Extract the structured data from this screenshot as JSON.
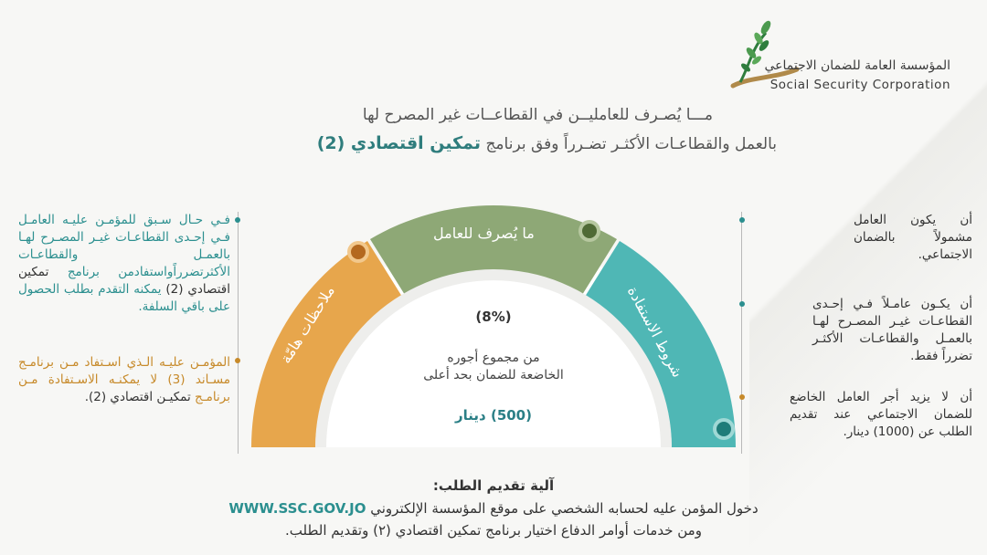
{
  "logo": {
    "name_ar": "المؤسسة العامة للضمان الاجتماعي",
    "name_en": "Social Security Corporation"
  },
  "header": {
    "line1": "مـــا يُصـرف للعامليــن في القطاعــات غير المصرح لها",
    "line2_prefix": "بالعمل والقطاعـات الأكثـر تضـرراً وفق برنامج",
    "line2_highlight": "تمكين اقتصادي (2)"
  },
  "gauge": {
    "segment_left": "ملاحظات هامّة",
    "segment_middle": "ما يُصرف للعامل",
    "segment_right": "شروط الاستفادة",
    "percent": "(8%)",
    "desc_line1": "من مجموع أجوره",
    "desc_line2": "الخاضعة للضمان بحد أعلى",
    "amount": "(500) دينار",
    "colors": {
      "left": "#e7a64c",
      "middle": "#8ea876",
      "right": "#4fb7b5"
    }
  },
  "conditions": [
    "أن يكون العامل مشمولاً بالضمان الاجتماعي.",
    "أن يكـون عامـلاً فـي إحـدى القطاعـات غيـر المصـرح لهـا بالعمـل والقطاعـات الأكثـر تضرراً فقط.",
    "أن لا يزيد أجر العامل الخاضع للضمان الاجتماعي عند تقديم الطلب عن (1000) دينار."
  ],
  "notes": {
    "note1_teal": "فـي حـال سـبق للمؤمـن عليـه العامـل فـي إحـدى القطاعـات غيـر المصـرح لهـا بالعمـل والقطاعـات الأكثرتضرراًواستفادمن برنامج",
    "note1_dark": "تمكين اقتصادي (2)",
    "note1_teal2": "يمكنه التقدم بطلب الحصول على باقي السلفة.",
    "note2_gold": "المؤمـن عليـه الـذي اسـتفاد مـن برنامـج مسـاند (3) لا يمكنـه الاسـتفادة مـن برنامـج",
    "note2_dark": "تمكيـن اقتصادي (2)."
  },
  "footer": {
    "title": "آلية تقديم الطلب:",
    "line1": "دخول المؤمن عليه لحسابه الشخصي على موقع المؤسسة الإلكتروني",
    "url": "WWW.SSC.GOV.JO",
    "line2": "ومن خدمات أوامر الدفاع اختيار برنامج تمكين اقتصادي (٢) وتقديم الطلب."
  }
}
